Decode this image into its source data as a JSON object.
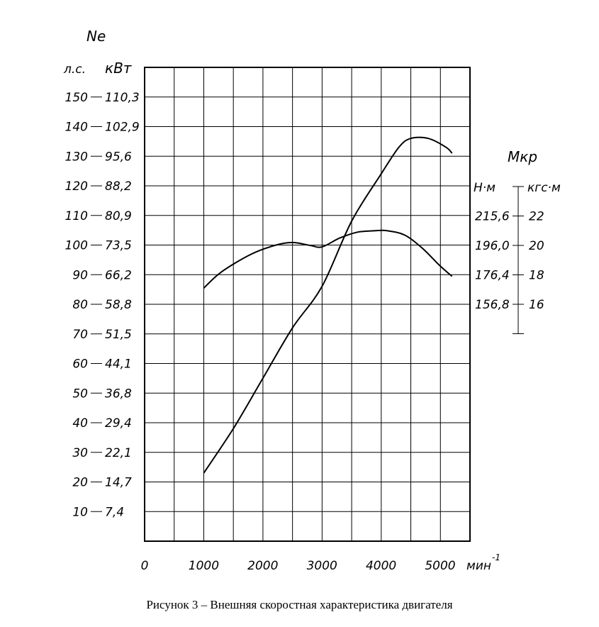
{
  "chart_data": {
    "type": "line",
    "left_axis": {
      "title": "Ne",
      "unit_hp": "л.с.",
      "unit_kw": "кВт",
      "ticks_hp": [
        "150",
        "140",
        "130",
        "120",
        "110",
        "100",
        "90",
        "80",
        "70",
        "60",
        "50",
        "40",
        "30",
        "20",
        "10"
      ],
      "ticks_kw": [
        "110,3",
        "102,9",
        "95,6",
        "88,2",
        "80,9",
        "73,5",
        "66,2",
        "58,8",
        "51,5",
        "44,1",
        "36,8",
        "29,4",
        "22,1",
        "14,7",
        "7,4"
      ],
      "ylim_hp": [
        0,
        160
      ]
    },
    "right_axis": {
      "title": "Мкр",
      "unit_nm": "Н·м",
      "unit_kgcm": "кгс·м",
      "ticks_nm": [
        "215,6",
        "196,0",
        "176,4",
        "156,8"
      ],
      "ticks_kgcm": [
        "22",
        "20",
        "18",
        "16"
      ],
      "kgcm_values": [
        22,
        20,
        18,
        16
      ],
      "kgcm_range": [
        14,
        24
      ]
    },
    "x_axis": {
      "unit": "мин",
      "unit_exp": "-1",
      "tick_labels": [
        "0",
        "1000",
        "2000",
        "3000",
        "4000",
        "5000"
      ],
      "tick_values": [
        0,
        1000,
        2000,
        3000,
        4000,
        5000
      ],
      "xlim": [
        0,
        5500
      ]
    },
    "grid": true,
    "series": [
      {
        "axis": "left_hp",
        "x": [
          1000,
          1500,
          2000,
          2500,
          3000,
          3500,
          4000,
          4300,
          4500,
          4800,
          5100,
          5200
        ],
        "y": [
          23,
          38,
          55,
          72,
          86,
          108,
          124,
          133,
          136,
          136,
          133,
          131
        ]
      },
      {
        "axis": "right_kgcm",
        "x": [
          1000,
          1300,
          1800,
          2200,
          2500,
          2800,
          3000,
          3300,
          3600,
          3900,
          4100,
          4400,
          4700,
          5000,
          5200
        ],
        "y": [
          17.1,
          18.2,
          19.4,
          20.0,
          20.2,
          20.0,
          19.9,
          20.5,
          20.9,
          21.0,
          21.0,
          20.7,
          19.8,
          18.6,
          17.9
        ]
      }
    ]
  },
  "caption": "Рисунок 3 – Внешняя скоростная характеристика двигателя"
}
